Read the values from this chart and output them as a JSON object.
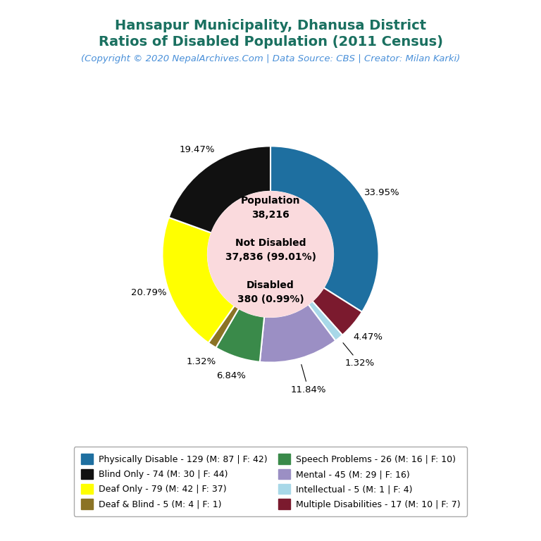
{
  "title_line1": "Hansapur Municipality, Dhanusa District",
  "title_line2": "Ratios of Disabled Population (2011 Census)",
  "subtitle": "(Copyright © 2020 NepalArchives.Com | Data Source: CBS | Creator: Milan Karki)",
  "title_color": "#1a7060",
  "subtitle_color": "#4a90d9",
  "total_population": 38216,
  "not_disabled": 37836,
  "not_disabled_pct": 99.01,
  "disabled": 380,
  "disabled_pct": 0.99,
  "center_bg": "#fadadd",
  "segments": [
    {
      "label": "Physically Disable - 129 (M: 87 | F: 42)",
      "value": 129,
      "pct": 33.95,
      "color": "#1e6fa0"
    },
    {
      "label": "Multiple Disabilities - 17 (M: 10 | F: 7)",
      "value": 17,
      "pct": 4.47,
      "color": "#7b1a2e"
    },
    {
      "label": "Intellectual - 5 (M: 1 | F: 4)",
      "value": 5,
      "pct": 1.32,
      "color": "#a8d8e8"
    },
    {
      "label": "Mental - 45 (M: 29 | F: 16)",
      "value": 45,
      "pct": 11.84,
      "color": "#9b8fc4"
    },
    {
      "label": "Speech Problems - 26 (M: 16 | F: 10)",
      "value": 26,
      "pct": 6.84,
      "color": "#3a8a4a"
    },
    {
      "label": "Deaf & Blind - 5 (M: 4 | F: 1)",
      "value": 5,
      "pct": 1.32,
      "color": "#8b7325"
    },
    {
      "label": "Deaf Only - 79 (M: 42 | F: 37)",
      "value": 79,
      "pct": 20.79,
      "color": "#ffff00"
    },
    {
      "label": "Blind Only - 74 (M: 30 | F: 44)",
      "value": 74,
      "pct": 19.47,
      "color": "#111111"
    }
  ],
  "background_color": "#ffffff",
  "donut_outer_r": 1.0,
  "donut_width": 0.42,
  "label_r": 1.18,
  "center_r": 0.58
}
